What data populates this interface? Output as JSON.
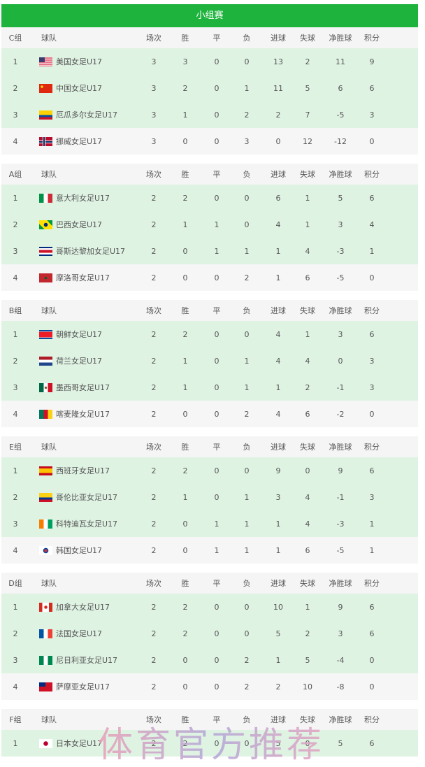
{
  "title": "小组赛",
  "columns": [
    "球队",
    "场次",
    "胜",
    "平",
    "负",
    "进球",
    "失球",
    "净胜球",
    "积分"
  ],
  "groups": [
    {
      "name": "C组",
      "rows": [
        {
          "rank": "1",
          "team": "美国女足U17",
          "flag": "usa",
          "stats": [
            "3",
            "3",
            "0",
            "0",
            "13",
            "2",
            "11",
            "9"
          ]
        },
        {
          "rank": "2",
          "team": "中国女足U17",
          "flag": "china",
          "stats": [
            "3",
            "2",
            "0",
            "1",
            "11",
            "5",
            "6",
            "6"
          ]
        },
        {
          "rank": "3",
          "team": "厄瓜多尔女足U17",
          "flag": "ecuador",
          "stats": [
            "3",
            "1",
            "0",
            "2",
            "2",
            "7",
            "-5",
            "3"
          ]
        },
        {
          "rank": "4",
          "team": "挪威女足U17",
          "flag": "norway",
          "stats": [
            "3",
            "0",
            "0",
            "3",
            "0",
            "12",
            "-12",
            "0"
          ]
        }
      ]
    },
    {
      "name": "A组",
      "rows": [
        {
          "rank": "1",
          "team": "意大利女足U17",
          "flag": "italy",
          "stats": [
            "2",
            "2",
            "0",
            "0",
            "6",
            "1",
            "5",
            "6"
          ]
        },
        {
          "rank": "2",
          "team": "巴西女足U17",
          "flag": "brazil",
          "stats": [
            "2",
            "1",
            "1",
            "0",
            "4",
            "1",
            "3",
            "4"
          ]
        },
        {
          "rank": "3",
          "team": "哥斯达黎加女足U17",
          "flag": "costa-rica",
          "stats": [
            "2",
            "0",
            "1",
            "1",
            "1",
            "4",
            "-3",
            "1"
          ]
        },
        {
          "rank": "4",
          "team": "摩洛哥女足U17",
          "flag": "morocco",
          "stats": [
            "2",
            "0",
            "0",
            "2",
            "1",
            "6",
            "-5",
            "0"
          ]
        }
      ]
    },
    {
      "name": "B组",
      "rows": [
        {
          "rank": "1",
          "team": "朝鲜女足U17",
          "flag": "north-korea",
          "stats": [
            "2",
            "2",
            "0",
            "0",
            "4",
            "1",
            "3",
            "6"
          ]
        },
        {
          "rank": "2",
          "team": "荷兰女足U17",
          "flag": "netherlands",
          "stats": [
            "2",
            "1",
            "0",
            "1",
            "4",
            "4",
            "0",
            "3"
          ]
        },
        {
          "rank": "3",
          "team": "墨西哥女足U17",
          "flag": "mexico",
          "stats": [
            "2",
            "1",
            "0",
            "1",
            "1",
            "2",
            "-1",
            "3"
          ]
        },
        {
          "rank": "4",
          "team": "喀麦隆女足U17",
          "flag": "cameroon",
          "stats": [
            "2",
            "0",
            "0",
            "2",
            "4",
            "6",
            "-2",
            "0"
          ]
        }
      ]
    },
    {
      "name": "E组",
      "rows": [
        {
          "rank": "1",
          "team": "西班牙女足U17",
          "flag": "spain",
          "stats": [
            "2",
            "2",
            "0",
            "0",
            "9",
            "0",
            "9",
            "6"
          ]
        },
        {
          "rank": "2",
          "team": "哥伦比亚女足U17",
          "flag": "colombia",
          "stats": [
            "2",
            "1",
            "0",
            "1",
            "3",
            "4",
            "-1",
            "3"
          ]
        },
        {
          "rank": "3",
          "team": "科特迪瓦女足U17",
          "flag": "ivory-coast",
          "stats": [
            "2",
            "0",
            "1",
            "1",
            "1",
            "4",
            "-3",
            "1"
          ]
        },
        {
          "rank": "4",
          "team": "韩国女足U17",
          "flag": "south-korea",
          "stats": [
            "2",
            "0",
            "1",
            "1",
            "1",
            "6",
            "-5",
            "1"
          ]
        }
      ]
    },
    {
      "name": "D组",
      "rows": [
        {
          "rank": "1",
          "team": "加拿大女足U17",
          "flag": "canada",
          "stats": [
            "2",
            "2",
            "0",
            "0",
            "10",
            "1",
            "9",
            "6"
          ]
        },
        {
          "rank": "2",
          "team": "法国女足U17",
          "flag": "france",
          "stats": [
            "2",
            "2",
            "0",
            "0",
            "5",
            "2",
            "3",
            "6"
          ]
        },
        {
          "rank": "3",
          "team": "尼日利亚女足U17",
          "flag": "nigeria",
          "stats": [
            "2",
            "0",
            "0",
            "2",
            "1",
            "5",
            "-4",
            "0"
          ]
        },
        {
          "rank": "4",
          "team": "萨摩亚女足U17",
          "flag": "samoa",
          "stats": [
            "2",
            "0",
            "0",
            "2",
            "2",
            "10",
            "-8",
            "0"
          ]
        }
      ]
    },
    {
      "name": "F组",
      "rows": [
        {
          "rank": "1",
          "team": "日本女足U17",
          "flag": "japan",
          "stats": [
            "2",
            "2",
            "0",
            "0",
            "5",
            "0",
            "5",
            "6"
          ]
        }
      ]
    }
  ],
  "colors": {
    "header": "#1db33c",
    "highlight_row": "#dff3e3",
    "plain_row": "#f6f6f6"
  },
  "watermark": "体育官方推荐"
}
